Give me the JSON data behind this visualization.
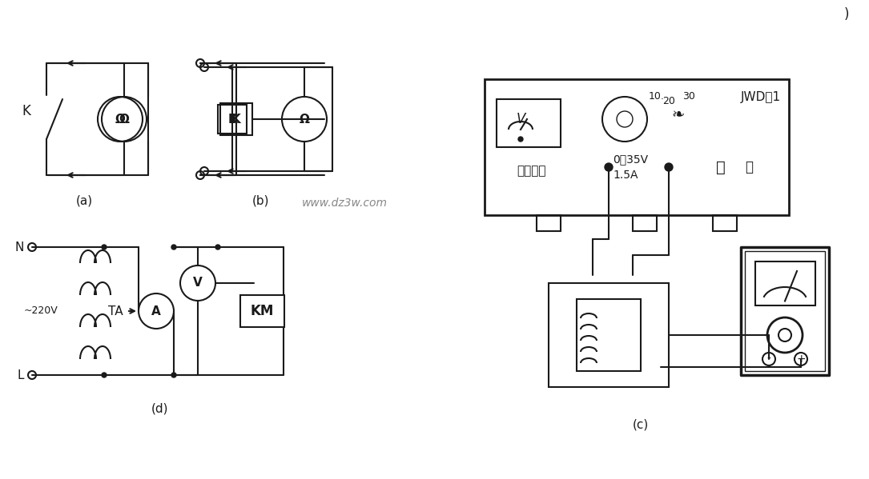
{
  "bg_color": "#f5f5f0",
  "line_color": "#1a1a1a",
  "label_a": "(a)",
  "label_b": "(b)",
  "label_c": "(c)",
  "label_d": "(d)",
  "watermark": "www.dz3w.com",
  "title_text": "JWD–1",
  "device_label": "稳压电源",
  "voltage_label": "0～35V",
  "current_label": "1.5A",
  "switch_label": "开",
  "dial_10": "10.",
  "dial_20": "20",
  "dial_30": "30"
}
